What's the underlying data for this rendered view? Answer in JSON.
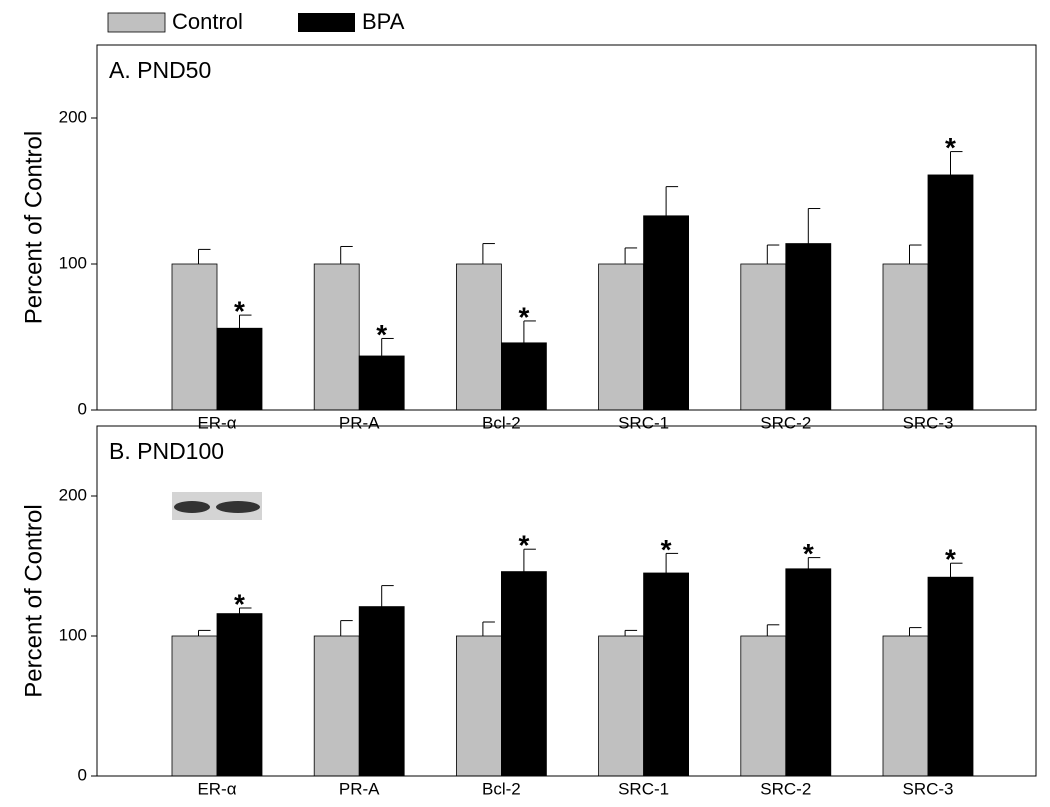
{
  "chart_data": [
    {
      "type": "bar",
      "title": "A. PND50",
      "y_label": "Percent of Control",
      "categories": [
        "ER-α",
        "PR-A",
        "Bcl-2",
        "SRC-1",
        "SRC-2",
        "SRC-3"
      ],
      "series": [
        {
          "name": "Control",
          "color": "#c0c0c0",
          "values": [
            100,
            100,
            100,
            100,
            100,
            100
          ],
          "errors": [
            10,
            12,
            14,
            11,
            13,
            13
          ]
        },
        {
          "name": "BPA",
          "color": "#000000",
          "values": [
            56,
            37,
            46,
            133,
            114,
            161
          ],
          "errors": [
            9,
            12,
            15,
            20,
            24,
            16
          ],
          "significance": [
            "*",
            "*",
            "*",
            null,
            null,
            "*"
          ]
        }
      ],
      "ylim": [
        0,
        250
      ],
      "yticks": [
        0,
        100,
        200
      ]
    },
    {
      "type": "bar",
      "title": "B. PND100",
      "y_label": "Percent of Control",
      "categories": [
        "ER-α",
        "PR-A",
        "Bcl-2",
        "SRC-1",
        "SRC-2",
        "SRC-3"
      ],
      "series": [
        {
          "name": "Control",
          "color": "#c0c0c0",
          "values": [
            100,
            100,
            100,
            100,
            100,
            100
          ],
          "errors": [
            4,
            11,
            10,
            4,
            8,
            6
          ]
        },
        {
          "name": "BPA",
          "color": "#000000",
          "values": [
            116,
            121,
            146,
            145,
            148,
            142
          ],
          "errors": [
            4,
            15,
            16,
            14,
            8,
            10
          ],
          "significance": [
            "*",
            null,
            "*",
            "*",
            "*",
            "*"
          ]
        }
      ],
      "ylim": [
        0,
        250
      ],
      "yticks": [
        0,
        100,
        200
      ]
    }
  ]
}
